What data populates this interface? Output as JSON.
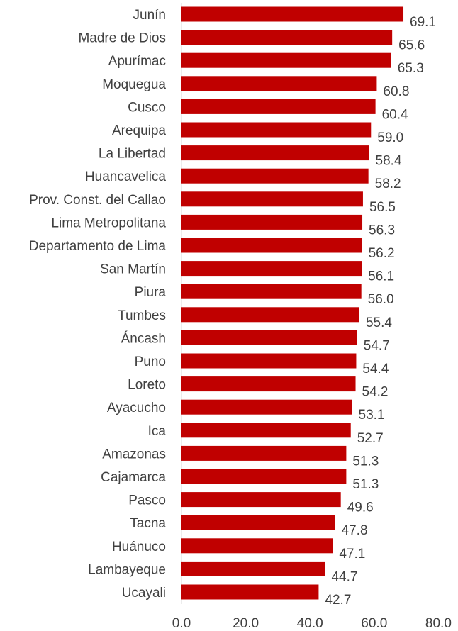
{
  "chart_data": {
    "type": "bar",
    "orientation": "horizontal",
    "title": "",
    "xlabel": "",
    "ylabel": "",
    "xlim": [
      0,
      80
    ],
    "x_ticks": [
      "0.0",
      "20.0",
      "40.0",
      "60.0",
      "80.0"
    ],
    "grid": false,
    "bar_color": "#C00000",
    "categories": [
      "Junín",
      "Madre de Dios",
      "Apurímac",
      "Moquegua",
      "Cusco",
      "Arequipa",
      "La Libertad",
      "Huancavelica",
      "Prov. Const. del Callao",
      "Lima Metropolitana",
      "Departamento de Lima",
      "San Martín",
      "Piura",
      "Tumbes",
      "Áncash",
      "Puno",
      "Loreto",
      "Ayacucho",
      "Ica",
      "Amazonas",
      "Cajamarca",
      "Pasco",
      "Tacna",
      "Huánuco",
      "Lambayeque",
      "Ucayali"
    ],
    "values": [
      69.1,
      65.6,
      65.3,
      60.8,
      60.4,
      59.0,
      58.4,
      58.2,
      56.5,
      56.3,
      56.2,
      56.1,
      56.0,
      55.4,
      54.7,
      54.4,
      54.2,
      53.1,
      52.7,
      51.3,
      51.3,
      49.6,
      47.8,
      47.1,
      44.7,
      42.7
    ],
    "value_labels": [
      "69.1",
      "65.6",
      "65.3",
      "60.8",
      "60.4",
      "59.0",
      "58.4",
      "58.2",
      "56.5",
      "56.3",
      "56.2",
      "56.1",
      "56.0",
      "55.4",
      "54.7",
      "54.4",
      "54.2",
      "53.1",
      "52.7",
      "51.3",
      "51.3",
      "49.6",
      "47.8",
      "47.1",
      "44.7",
      "42.7"
    ]
  }
}
